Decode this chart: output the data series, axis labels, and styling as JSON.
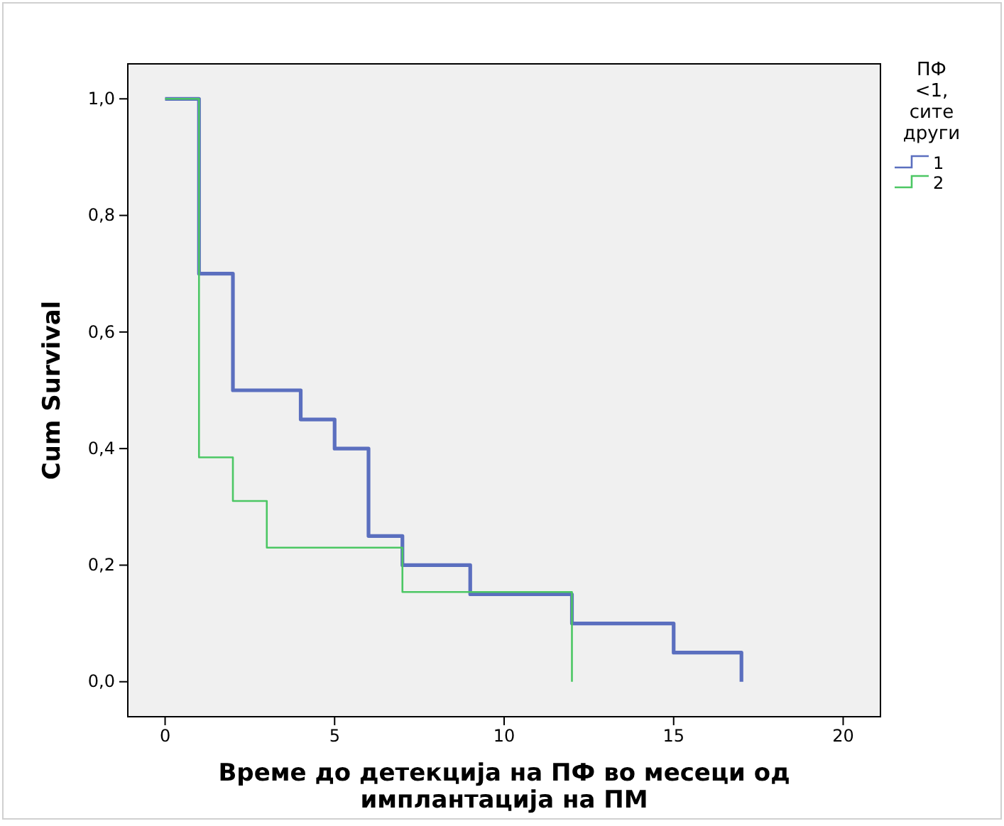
{
  "chart_data": {
    "type": "step",
    "xlabel": "Време до детекција на ПФ во месеци од имплантација на ПМ",
    "ylabel": "Cum Survival",
    "legend_title": "ПФ <1, сите други",
    "legend": "right",
    "grid": false,
    "xlim": [
      -1.1,
      21.1
    ],
    "xticks": [
      0,
      5,
      10,
      15,
      20
    ],
    "ylim": [
      -0.06,
      1.06
    ],
    "yticks": [
      {
        "value": 0,
        "label": "0,0"
      },
      {
        "value": 0.2,
        "label": "0,2"
      },
      {
        "value": 0.4,
        "label": "0,4"
      },
      {
        "value": 0.6,
        "label": "0,6"
      },
      {
        "value": 0.8,
        "label": "0,8"
      },
      {
        "value": 1,
        "label": "1,0"
      }
    ],
    "series": [
      {
        "name": "1",
        "color": "#5b6fbf",
        "x": [
          0,
          1,
          2,
          4,
          5,
          6,
          7,
          9,
          12,
          15,
          17
        ],
        "values": [
          1,
          0.7,
          0.5,
          0.45,
          0.4,
          0.25,
          0.2,
          0.15,
          0.1,
          0.05,
          0
        ]
      },
      {
        "name": "2",
        "color": "#4cc764",
        "x": [
          0,
          1,
          2,
          3,
          7,
          12
        ],
        "values": [
          1,
          0.385,
          0.31,
          0.23,
          0.154,
          0
        ]
      }
    ]
  }
}
